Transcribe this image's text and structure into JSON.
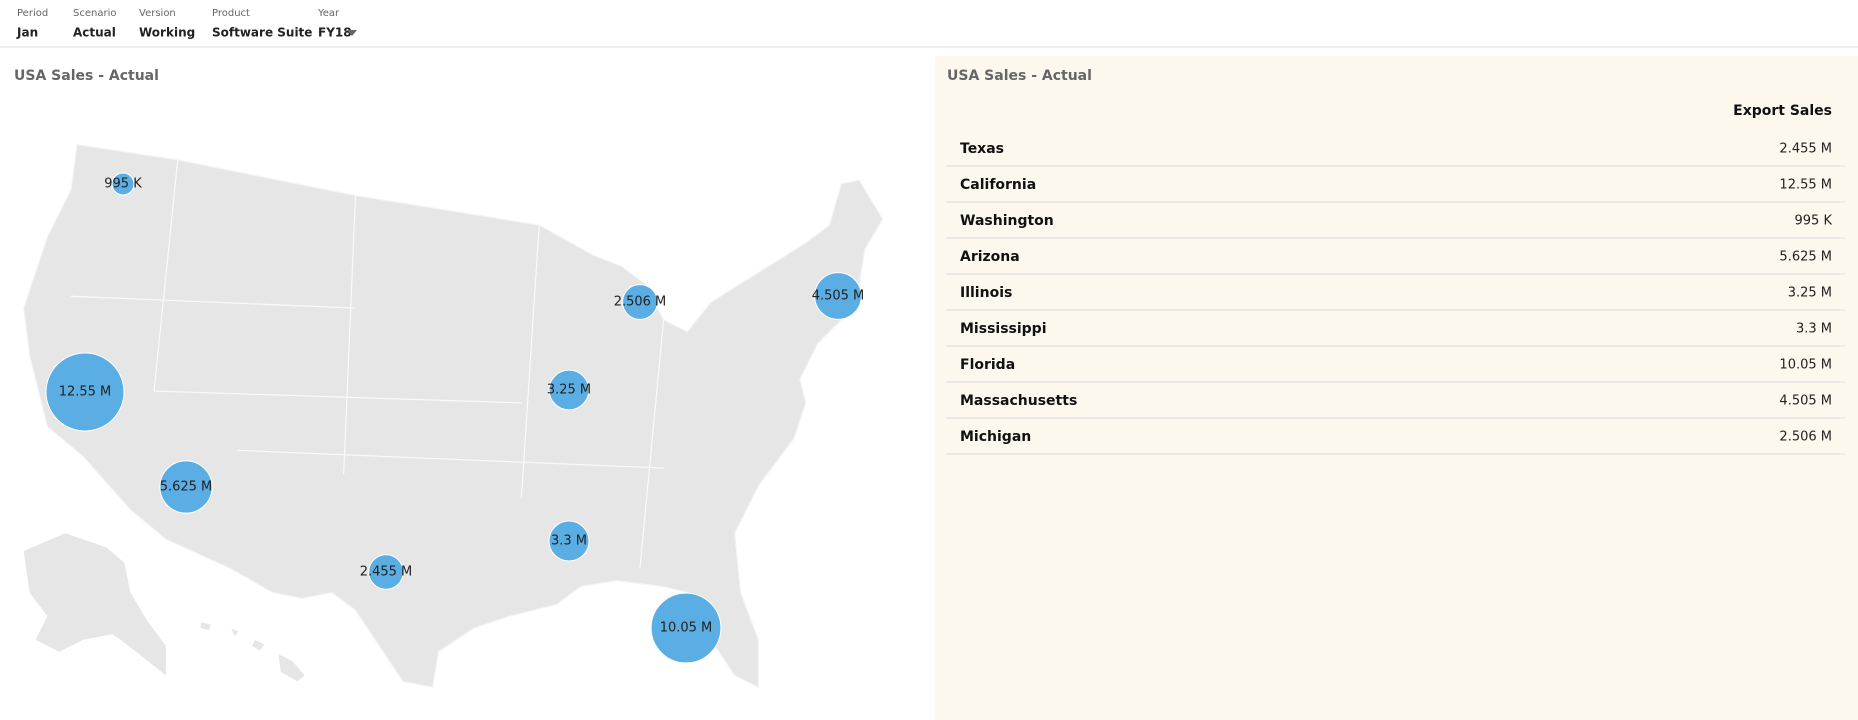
{
  "pov": [
    {
      "label": "Period",
      "value": "Jan"
    },
    {
      "label": "Scenario",
      "value": "Actual"
    },
    {
      "label": "Version",
      "value": "Working"
    },
    {
      "label": "Product",
      "value": "Software Suite"
    },
    {
      "label": "Year",
      "value": "FY18"
    }
  ],
  "map": {
    "title": "USA Sales - Actual",
    "bubbles": [
      {
        "value": 2455000,
        "label": "2.455 M"
      },
      {
        "value": 12550000,
        "label": "12.55 M"
      },
      {
        "value": 995000,
        "label": "995 K"
      },
      {
        "value": 5625000,
        "label": "5.625 M"
      },
      {
        "value": 3250000,
        "label": "3.25 M"
      },
      {
        "value": 3300000,
        "label": "3.3 M"
      },
      {
        "value": 10050000,
        "label": "10.05 M"
      },
      {
        "value": 4505000,
        "label": "4.505 M"
      },
      {
        "value": 2506000,
        "label": "2.506 M"
      }
    ]
  },
  "table": {
    "title": "USA Sales - Actual",
    "header": "Export Sales",
    "rows": [
      [
        "Texas",
        "2.455 M"
      ],
      [
        "California",
        "12.55 M"
      ],
      [
        "Washington",
        "995 K"
      ],
      [
        "Arizona",
        "5.625 M"
      ],
      [
        "Illinois",
        "3.25 M"
      ],
      [
        "Mississippi",
        "3.3 M"
      ],
      [
        "Florida",
        "10.05 M"
      ],
      [
        "Massachusetts",
        "4.505 M"
      ],
      [
        "Michigan",
        "2.506 M"
      ]
    ]
  }
}
